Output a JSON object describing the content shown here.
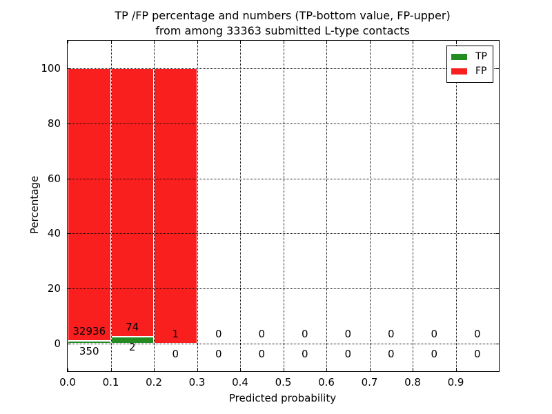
{
  "chart_data": {
    "type": "bar",
    "stacked": true,
    "title_lines": [
      "TP /FP percentage and numbers (TP-bottom value, FP-upper)",
      "from among 33363 submitted L-type contacts"
    ],
    "xlabel": "Predicted probability",
    "ylabel": "Percentage",
    "xlim": [
      0.0,
      1.0
    ],
    "ylim": [
      -10,
      110
    ],
    "xticks": {
      "values": [
        0.0,
        0.1,
        0.2,
        0.3,
        0.4,
        0.5,
        0.6,
        0.7,
        0.8,
        0.9
      ],
      "labels": [
        "0.0",
        "0.1",
        "0.2",
        "0.3",
        "0.4",
        "0.5",
        "0.6",
        "0.7",
        "0.8",
        "0.9"
      ]
    },
    "yticks": {
      "values": [
        0,
        20,
        40,
        60,
        80,
        100
      ],
      "labels": [
        "0",
        "20",
        "40",
        "60",
        "80",
        "100"
      ]
    },
    "grid": {
      "show": true,
      "style": "dotted",
      "color": "#000000",
      "above_bars": true
    },
    "colors": {
      "tp": "#228b22",
      "fp": "#f91f1f",
      "bar_edge": "#ffffff"
    },
    "legend": {
      "position": "upper-right",
      "entries": [
        {
          "label": "TP",
          "color": "#228b22"
        },
        {
          "label": "FP",
          "color": "#f91f1f"
        }
      ]
    },
    "bins": [
      {
        "x_range": [
          0.0,
          0.1
        ],
        "tp_count": 350,
        "fp_count": 32936,
        "tp_pct": 1.05,
        "fp_pct": 98.95
      },
      {
        "x_range": [
          0.1,
          0.2
        ],
        "tp_count": 2,
        "fp_count": 74,
        "tp_pct": 2.63,
        "fp_pct": 97.37
      },
      {
        "x_range": [
          0.2,
          0.3
        ],
        "tp_count": 0,
        "fp_count": 1,
        "tp_pct": 0,
        "fp_pct": 100
      },
      {
        "x_range": [
          0.3,
          0.4
        ],
        "tp_count": 0,
        "fp_count": 0,
        "tp_pct": 0,
        "fp_pct": 0
      },
      {
        "x_range": [
          0.4,
          0.5
        ],
        "tp_count": 0,
        "fp_count": 0,
        "tp_pct": 0,
        "fp_pct": 0
      },
      {
        "x_range": [
          0.5,
          0.6
        ],
        "tp_count": 0,
        "fp_count": 0,
        "tp_pct": 0,
        "fp_pct": 0
      },
      {
        "x_range": [
          0.6,
          0.7
        ],
        "tp_count": 0,
        "fp_count": 0,
        "tp_pct": 0,
        "fp_pct": 0
      },
      {
        "x_range": [
          0.7,
          0.8
        ],
        "tp_count": 0,
        "fp_count": 0,
        "tp_pct": 0,
        "fp_pct": 0
      },
      {
        "x_range": [
          0.8,
          0.9
        ],
        "tp_count": 0,
        "fp_count": 0,
        "tp_pct": 0,
        "fp_pct": 0
      },
      {
        "x_range": [
          0.9,
          1.0
        ],
        "tp_count": 0,
        "fp_count": 0,
        "tp_pct": 0,
        "fp_pct": 0
      }
    ],
    "annotation_note": "FP count printed above each bin's TP bar top, TP count printed below the zero line"
  }
}
